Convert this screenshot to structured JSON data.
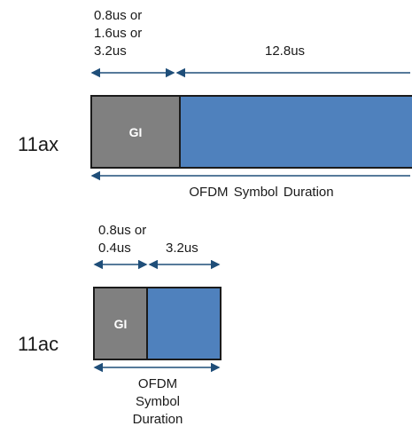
{
  "ax": {
    "row_label": "11ax",
    "gi_label": "GI",
    "gi_duration_lines": [
      "0.8us or",
      "1.6us or",
      "3.2us"
    ],
    "data_duration": "12.8us",
    "symbol_caption": "OFDM  Symbol  Duration"
  },
  "ac": {
    "row_label": "11ac",
    "gi_label": "GI",
    "gi_duration_lines": [
      "0.8us or",
      "0.4us"
    ],
    "data_duration": "3.2us",
    "symbol_caption_lines": [
      "OFDM",
      "Symbol",
      "Duration"
    ]
  },
  "colors": {
    "gi_fill": "#808080",
    "symbol_fill": "#4f81bd",
    "arrow": "#1f4e79",
    "outline": "#1b1b1b"
  }
}
